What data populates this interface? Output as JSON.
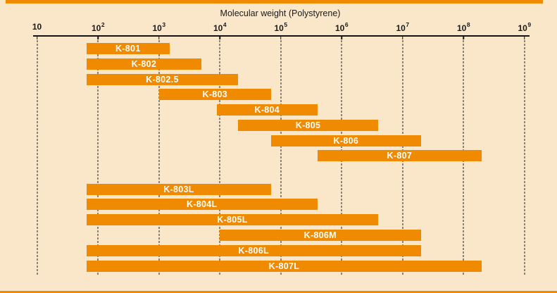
{
  "chart_data": {
    "type": "bar",
    "subtype": "horizontal-range-bars",
    "title": "Molecular weight (Polystyrene)",
    "x_axis": {
      "scale": "log10",
      "range": [
        10,
        1000000000
      ],
      "tick_values": [
        10,
        100,
        1000,
        10000,
        100000,
        1000000,
        10000000,
        100000000,
        1000000000
      ],
      "tick_labels": [
        "10",
        "10^2",
        "10^3",
        "10^4",
        "10^5",
        "10^6",
        "10^7",
        "10^8",
        "10^9"
      ],
      "gridlines": "vertical dashed at each decade"
    },
    "legend": "none",
    "upper_group": [
      {
        "label": "K-801",
        "mw_min": 65,
        "mw_max": 1500
      },
      {
        "label": "K-802",
        "mw_min": 65,
        "mw_max": 5000
      },
      {
        "label": "K-802.5",
        "mw_min": 65,
        "mw_max": 20000
      },
      {
        "label": "K-803",
        "mw_min": 1000,
        "mw_max": 70000
      },
      {
        "label": "K-804",
        "mw_min": 9000,
        "mw_max": 400000
      },
      {
        "label": "K-805",
        "mw_min": 20000,
        "mw_max": 4000000
      },
      {
        "label": "K-806",
        "mw_min": 70000,
        "mw_max": 20000000
      },
      {
        "label": "K-807",
        "mw_min": 400000,
        "mw_max": 200000000
      }
    ],
    "lower_group": [
      {
        "label": "K-803L",
        "mw_min": 65,
        "mw_max": 70000
      },
      {
        "label": "K-804L",
        "mw_min": 65,
        "mw_max": 400000
      },
      {
        "label": "K-805L",
        "mw_min": 65,
        "mw_max": 4000000
      },
      {
        "label": "K-806M",
        "mw_min": 10000,
        "mw_max": 20000000
      },
      {
        "label": "K-806L",
        "mw_min": 65,
        "mw_max": 20000000
      },
      {
        "label": "K-807L",
        "mw_min": 65,
        "mw_max": 200000000
      }
    ],
    "colors": {
      "background": "#FAE6C8",
      "bar": "#F08A00",
      "bar_label_text": "#FFFFFF",
      "axis_text": "#1A1A1A"
    }
  }
}
